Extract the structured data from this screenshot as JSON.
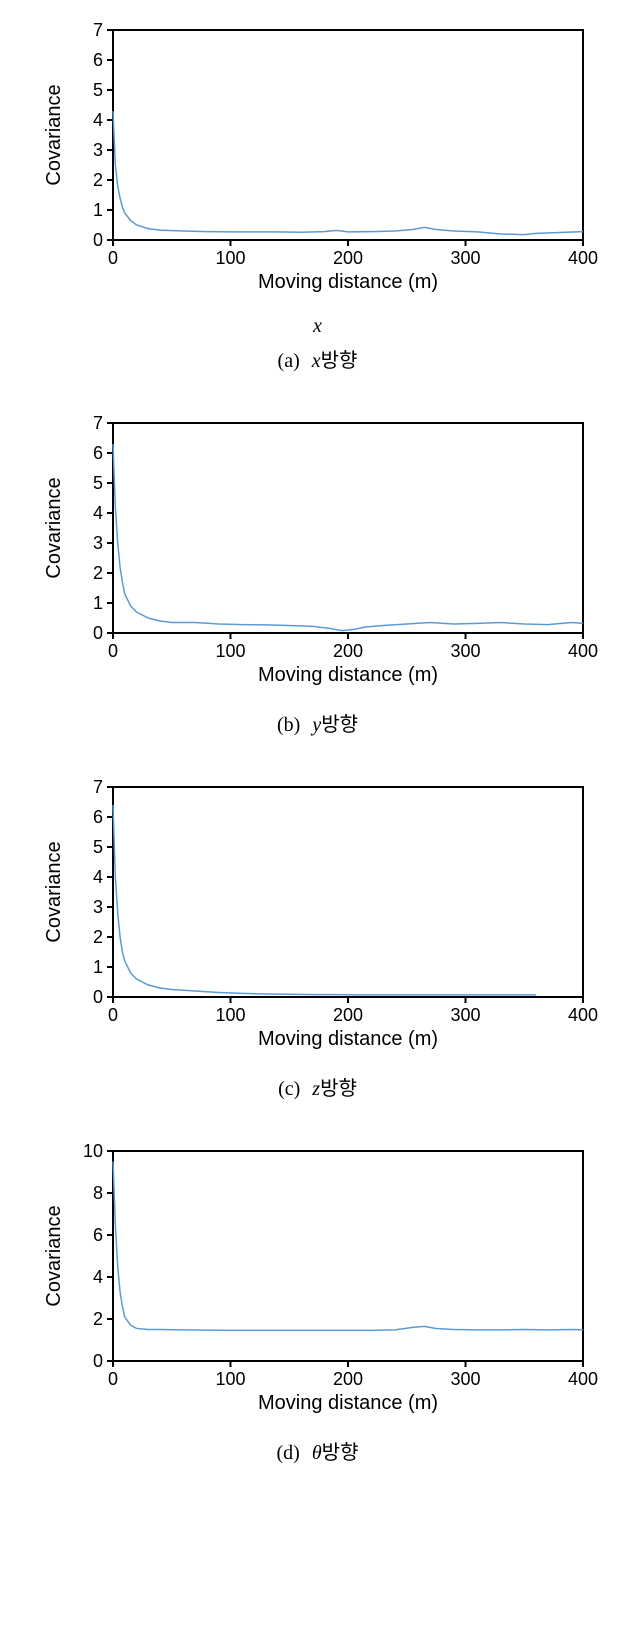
{
  "global": {
    "line_color": "#5b9bd5",
    "axis_color": "#000000",
    "background_color": "#ffffff",
    "ylabel": "Covariance",
    "xlabel": "Moving distance (m)",
    "tick_fontsize": 18,
    "label_fontsize": 20,
    "caption_fontsize": 20,
    "line_width": 1.5,
    "axis_line_width": 2
  },
  "charts": [
    {
      "id": "a",
      "caption_label": "(a)",
      "caption_var": "x",
      "caption_suffix": "방향",
      "extra_sub_caption": "x",
      "xlim": [
        0,
        400
      ],
      "ylim": [
        0,
        7
      ],
      "xticks": [
        0,
        100,
        200,
        300,
        400
      ],
      "yticks": [
        0,
        1,
        2,
        3,
        4,
        5,
        6,
        7
      ],
      "series": [
        {
          "x": 0,
          "y": 4.3
        },
        {
          "x": 2,
          "y": 2.5
        },
        {
          "x": 4,
          "y": 1.8
        },
        {
          "x": 6,
          "y": 1.4
        },
        {
          "x": 8,
          "y": 1.1
        },
        {
          "x": 10,
          "y": 0.9
        },
        {
          "x": 15,
          "y": 0.65
        },
        {
          "x": 20,
          "y": 0.5
        },
        {
          "x": 30,
          "y": 0.38
        },
        {
          "x": 40,
          "y": 0.33
        },
        {
          "x": 60,
          "y": 0.3
        },
        {
          "x": 80,
          "y": 0.28
        },
        {
          "x": 100,
          "y": 0.27
        },
        {
          "x": 120,
          "y": 0.27
        },
        {
          "x": 140,
          "y": 0.27
        },
        {
          "x": 160,
          "y": 0.26
        },
        {
          "x": 180,
          "y": 0.28
        },
        {
          "x": 190,
          "y": 0.32
        },
        {
          "x": 200,
          "y": 0.27
        },
        {
          "x": 220,
          "y": 0.28
        },
        {
          "x": 240,
          "y": 0.3
        },
        {
          "x": 255,
          "y": 0.35
        },
        {
          "x": 265,
          "y": 0.42
        },
        {
          "x": 275,
          "y": 0.35
        },
        {
          "x": 290,
          "y": 0.3
        },
        {
          "x": 310,
          "y": 0.27
        },
        {
          "x": 330,
          "y": 0.2
        },
        {
          "x": 350,
          "y": 0.18
        },
        {
          "x": 360,
          "y": 0.22
        },
        {
          "x": 380,
          "y": 0.25
        },
        {
          "x": 400,
          "y": 0.28
        }
      ]
    },
    {
      "id": "b",
      "caption_label": "(b)",
      "caption_var": "y",
      "caption_suffix": "방향",
      "xlim": [
        0,
        400
      ],
      "ylim": [
        0,
        7
      ],
      "xticks": [
        0,
        100,
        200,
        300,
        400
      ],
      "yticks": [
        0,
        1,
        2,
        3,
        4,
        5,
        6,
        7
      ],
      "series": [
        {
          "x": 0,
          "y": 6.3
        },
        {
          "x": 2,
          "y": 4.2
        },
        {
          "x": 4,
          "y": 3.0
        },
        {
          "x": 6,
          "y": 2.2
        },
        {
          "x": 8,
          "y": 1.7
        },
        {
          "x": 10,
          "y": 1.3
        },
        {
          "x": 15,
          "y": 0.9
        },
        {
          "x": 20,
          "y": 0.7
        },
        {
          "x": 30,
          "y": 0.5
        },
        {
          "x": 40,
          "y": 0.4
        },
        {
          "x": 50,
          "y": 0.35
        },
        {
          "x": 70,
          "y": 0.35
        },
        {
          "x": 90,
          "y": 0.3
        },
        {
          "x": 110,
          "y": 0.28
        },
        {
          "x": 130,
          "y": 0.27
        },
        {
          "x": 150,
          "y": 0.25
        },
        {
          "x": 170,
          "y": 0.22
        },
        {
          "x": 185,
          "y": 0.15
        },
        {
          "x": 195,
          "y": 0.08
        },
        {
          "x": 205,
          "y": 0.12
        },
        {
          "x": 215,
          "y": 0.2
        },
        {
          "x": 230,
          "y": 0.25
        },
        {
          "x": 250,
          "y": 0.3
        },
        {
          "x": 270,
          "y": 0.35
        },
        {
          "x": 290,
          "y": 0.3
        },
        {
          "x": 310,
          "y": 0.32
        },
        {
          "x": 330,
          "y": 0.35
        },
        {
          "x": 350,
          "y": 0.3
        },
        {
          "x": 370,
          "y": 0.28
        },
        {
          "x": 390,
          "y": 0.35
        },
        {
          "x": 400,
          "y": 0.32
        }
      ]
    },
    {
      "id": "c",
      "caption_label": "(c)",
      "caption_var": "z",
      "caption_suffix": "방향",
      "xlim": [
        0,
        400
      ],
      "ylim": [
        0,
        7
      ],
      "xticks": [
        0,
        100,
        200,
        300,
        400
      ],
      "yticks": [
        0,
        1,
        2,
        3,
        4,
        5,
        6,
        7
      ],
      "series": [
        {
          "x": 0,
          "y": 6.4
        },
        {
          "x": 2,
          "y": 4.0
        },
        {
          "x": 4,
          "y": 2.8
        },
        {
          "x": 6,
          "y": 2.0
        },
        {
          "x": 8,
          "y": 1.5
        },
        {
          "x": 10,
          "y": 1.2
        },
        {
          "x": 15,
          "y": 0.8
        },
        {
          "x": 20,
          "y": 0.6
        },
        {
          "x": 30,
          "y": 0.4
        },
        {
          "x": 40,
          "y": 0.3
        },
        {
          "x": 50,
          "y": 0.25
        },
        {
          "x": 70,
          "y": 0.2
        },
        {
          "x": 90,
          "y": 0.15
        },
        {
          "x": 110,
          "y": 0.12
        },
        {
          "x": 130,
          "y": 0.1
        },
        {
          "x": 150,
          "y": 0.09
        },
        {
          "x": 170,
          "y": 0.08
        },
        {
          "x": 190,
          "y": 0.08
        },
        {
          "x": 210,
          "y": 0.07
        },
        {
          "x": 230,
          "y": 0.07
        },
        {
          "x": 250,
          "y": 0.07
        },
        {
          "x": 270,
          "y": 0.07
        },
        {
          "x": 290,
          "y": 0.07
        },
        {
          "x": 310,
          "y": 0.07
        },
        {
          "x": 330,
          "y": 0.07
        },
        {
          "x": 350,
          "y": 0.07
        },
        {
          "x": 360,
          "y": 0.07
        }
      ]
    },
    {
      "id": "d",
      "caption_label": "(d)",
      "caption_var": "θ",
      "caption_suffix": "방향",
      "xlim": [
        0,
        400
      ],
      "ylim": [
        0,
        10
      ],
      "xticks": [
        0,
        100,
        200,
        300,
        400
      ],
      "yticks": [
        0,
        2,
        4,
        6,
        8,
        10
      ],
      "series": [
        {
          "x": 0,
          "y": 9.5
        },
        {
          "x": 2,
          "y": 6.5
        },
        {
          "x": 4,
          "y": 4.5
        },
        {
          "x": 6,
          "y": 3.3
        },
        {
          "x": 8,
          "y": 2.6
        },
        {
          "x": 10,
          "y": 2.1
        },
        {
          "x": 15,
          "y": 1.7
        },
        {
          "x": 20,
          "y": 1.55
        },
        {
          "x": 30,
          "y": 1.5
        },
        {
          "x": 40,
          "y": 1.5
        },
        {
          "x": 60,
          "y": 1.48
        },
        {
          "x": 80,
          "y": 1.47
        },
        {
          "x": 100,
          "y": 1.46
        },
        {
          "x": 120,
          "y": 1.46
        },
        {
          "x": 140,
          "y": 1.46
        },
        {
          "x": 160,
          "y": 1.46
        },
        {
          "x": 180,
          "y": 1.46
        },
        {
          "x": 200,
          "y": 1.46
        },
        {
          "x": 220,
          "y": 1.46
        },
        {
          "x": 240,
          "y": 1.48
        },
        {
          "x": 255,
          "y": 1.6
        },
        {
          "x": 265,
          "y": 1.65
        },
        {
          "x": 275,
          "y": 1.55
        },
        {
          "x": 290,
          "y": 1.5
        },
        {
          "x": 310,
          "y": 1.48
        },
        {
          "x": 330,
          "y": 1.48
        },
        {
          "x": 350,
          "y": 1.5
        },
        {
          "x": 370,
          "y": 1.48
        },
        {
          "x": 390,
          "y": 1.5
        },
        {
          "x": 400,
          "y": 1.48
        }
      ]
    }
  ]
}
